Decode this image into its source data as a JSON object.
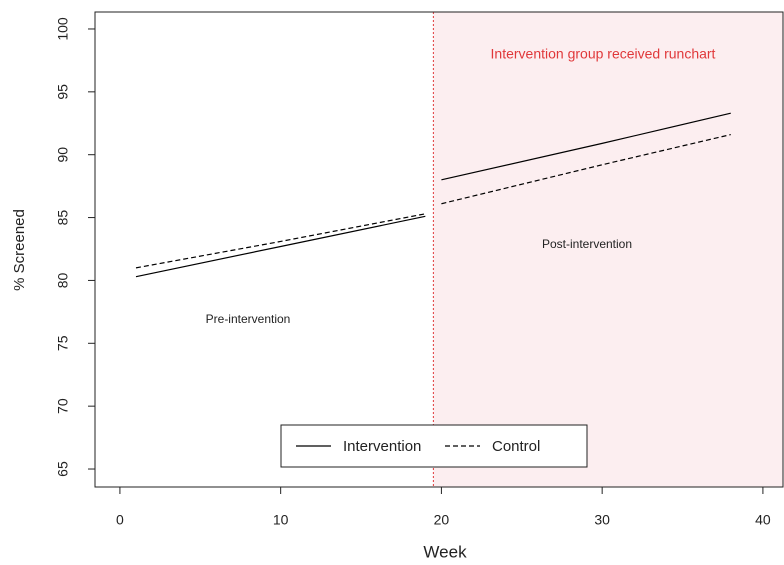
{
  "chart_data": {
    "type": "line",
    "xlabel": "Week",
    "ylabel": "% Screened",
    "x": [
      1,
      10,
      19,
      19.5,
      20,
      30,
      38
    ],
    "series": [
      {
        "name": "Intervention",
        "color": "#000000",
        "dash": "solid",
        "values": [
          80.3,
          82.7,
          85.1,
          null,
          88.0,
          90.9,
          93.3
        ]
      },
      {
        "name": "Control",
        "color": "#000000",
        "dash": "dashed",
        "values": [
          81.0,
          83.1,
          85.3,
          null,
          86.1,
          89.2,
          91.6
        ]
      }
    ],
    "xlim": [
      -1.55,
      41.25
    ],
    "xticks": [
      0,
      10,
      20,
      30,
      40
    ],
    "ylim": [
      63.57,
      101.35
    ],
    "yticks": [
      65,
      70,
      75,
      80,
      85,
      90,
      95,
      100
    ],
    "intervention_week": 19.5,
    "shade_color": "#fceef0",
    "vline_color": "#e0383a",
    "annotations": [
      "Intervention group received runchart",
      "Pre-intervention",
      "Post-intervention"
    ],
    "legend": "bottom"
  }
}
